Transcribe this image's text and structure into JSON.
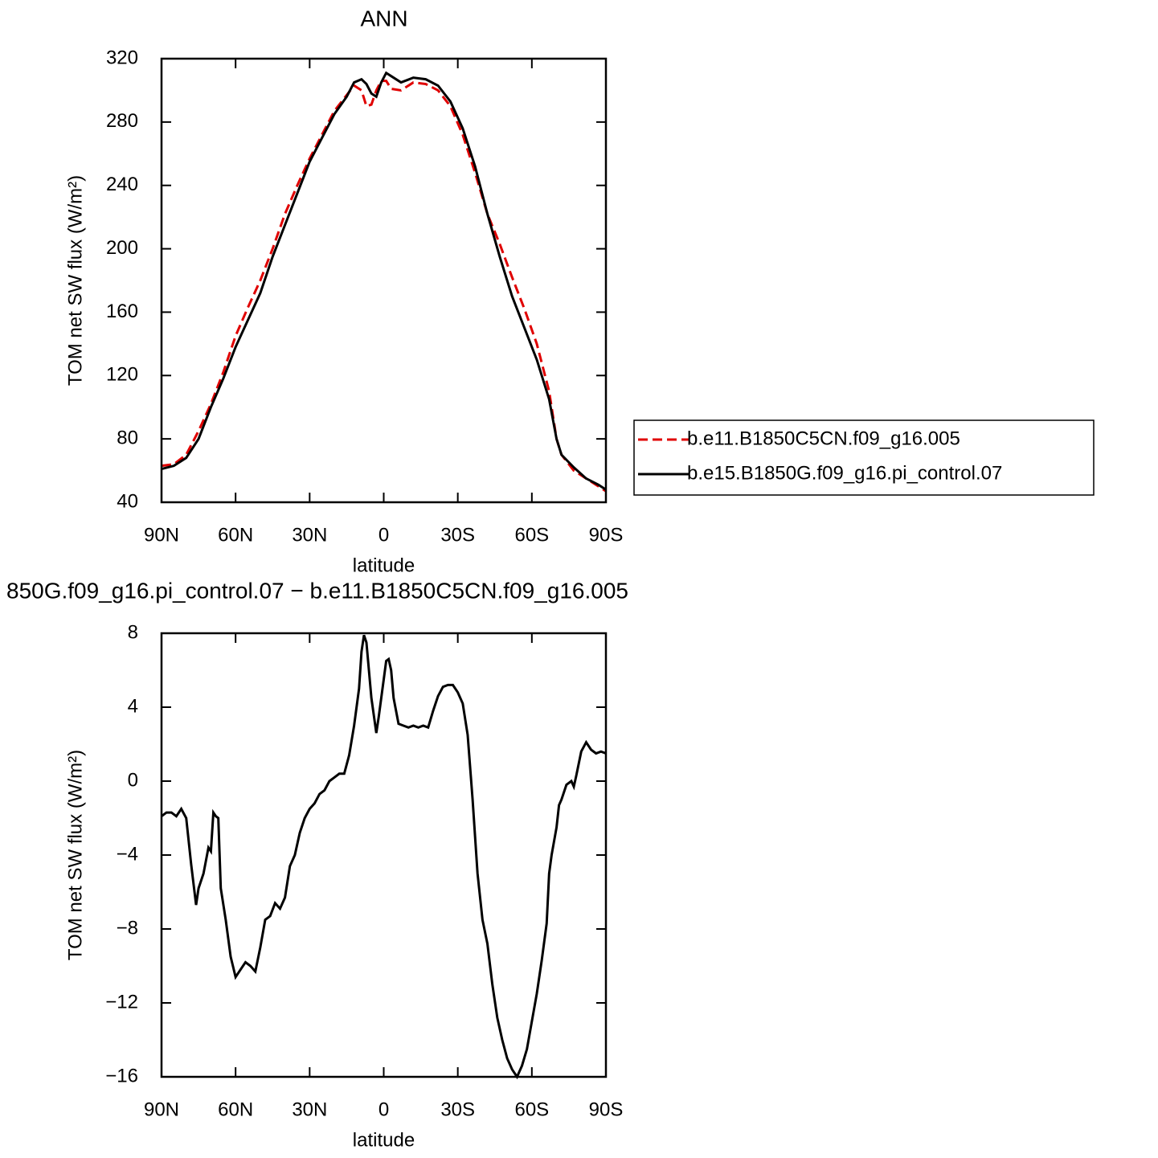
{
  "chart_data": [
    {
      "type": "line",
      "title": "ANN",
      "xlabel": "latitude",
      "ylabel": "TOM net SW flux (W/m²)",
      "xlim": [
        90,
        -90
      ],
      "ylim": [
        40,
        320
      ],
      "xticks": [
        {
          "value": 90,
          "label": "90N"
        },
        {
          "value": 60,
          "label": "60N"
        },
        {
          "value": 30,
          "label": "30N"
        },
        0,
        {
          "value": -30,
          "label": "30S"
        },
        {
          "value": -60,
          "label": "60S"
        },
        {
          "value": -90,
          "label": "90S"
        }
      ],
      "yticks": [
        40,
        80,
        120,
        160,
        200,
        240,
        280,
        320
      ],
      "legend": "right",
      "x": [
        90,
        85,
        80,
        75,
        70,
        65,
        60,
        55,
        50,
        45,
        40,
        35,
        30,
        25,
        20,
        15,
        12,
        9,
        7,
        5,
        3,
        1,
        -1,
        -3,
        -7,
        -12,
        -17,
        -22,
        -27,
        -32,
        -37,
        -42,
        -47,
        -52,
        -57,
        -62,
        -67,
        -70,
        -72,
        -77,
        -82,
        -87,
        -90
      ],
      "series": [
        {
          "name": "b.e11.B1850C5CN.f09_g16.005",
          "color": "#e00000",
          "dashed": true,
          "values": [
            63,
            64,
            70,
            85,
            102,
            122,
            145,
            163,
            180,
            200,
            222,
            240,
            257,
            272,
            287,
            297,
            303,
            300,
            290,
            291,
            300,
            306,
            306,
            301,
            300,
            305,
            304,
            300,
            290,
            272,
            248,
            222,
            203,
            182,
            162,
            140,
            110,
            80,
            70,
            60,
            55,
            50,
            47
          ]
        },
        {
          "name": "b.e15.B1850G.f09_g16.pi_control.07",
          "color": "#000000",
          "dashed": false,
          "values": [
            61,
            63,
            68,
            80,
            100,
            118,
            138,
            155,
            172,
            195,
            215,
            235,
            255,
            270,
            285,
            296,
            305,
            307,
            304,
            298,
            296,
            305,
            311,
            309,
            305,
            308,
            307,
            303,
            293,
            276,
            252,
            222,
            195,
            170,
            150,
            130,
            105,
            80,
            70,
            62,
            55,
            51,
            48
          ]
        }
      ]
    },
    {
      "type": "line",
      "title": "850G.f09_g16.pi_control.07 − b.e11.B1850C5CN.f09_g16.005",
      "xlabel": "latitude",
      "ylabel": "TOM net SW flux (W/m²)",
      "xlim": [
        90,
        -90
      ],
      "ylim": [
        -16,
        8
      ],
      "xticks": [
        {
          "value": 90,
          "label": "90N"
        },
        {
          "value": 60,
          "label": "60N"
        },
        {
          "value": 30,
          "label": "30N"
        },
        0,
        {
          "value": -30,
          "label": "30S"
        },
        {
          "value": -60,
          "label": "60S"
        },
        {
          "value": -90,
          "label": "90S"
        }
      ],
      "yticks": [
        {
          "value": -16,
          "label": "−16"
        },
        {
          "value": -12,
          "label": "−12"
        },
        {
          "value": -8,
          "label": "−8"
        },
        {
          "value": -4,
          "label": "−4"
        },
        0,
        4,
        8
      ],
      "x": [
        90,
        88,
        86,
        84,
        82,
        80,
        78,
        76,
        75,
        73,
        71,
        70,
        69,
        68,
        67,
        66,
        64,
        62,
        60,
        58,
        56,
        54,
        52,
        50,
        48,
        46,
        44,
        42,
        40,
        38,
        36,
        34,
        32,
        30,
        28,
        26,
        24,
        22,
        20,
        18,
        16,
        14,
        12,
        10,
        9,
        8,
        7,
        6,
        5,
        3,
        2,
        0,
        -1,
        -2,
        -3,
        -4,
        -6,
        -8,
        -10,
        -12,
        -14,
        -16,
        -18,
        -20,
        -22,
        -24,
        -26,
        -28,
        -30,
        -32,
        -34,
        -36,
        -38,
        -40,
        -42,
        -44,
        -46,
        -48,
        -50,
        -52,
        -54,
        -56,
        -58,
        -60,
        -62,
        -64,
        -66,
        -67,
        -68,
        -70,
        -71,
        -72,
        -74,
        -76,
        -77,
        -78,
        -80,
        -82,
        -84,
        -86,
        -88,
        -90
      ],
      "series": [
        {
          "color": "#000000",
          "dashed": false,
          "values": [
            -1.9,
            -1.7,
            -1.7,
            -1.9,
            -1.5,
            -2.0,
            -4.5,
            -6.7,
            -5.8,
            -5.0,
            -3.6,
            -3.8,
            -1.7,
            -1.9,
            -2.0,
            -5.8,
            -7.5,
            -9.5,
            -10.6,
            -10.2,
            -9.8,
            -10.0,
            -10.3,
            -9.0,
            -7.5,
            -7.3,
            -6.6,
            -6.9,
            -6.3,
            -4.6,
            -4.0,
            -2.8,
            -2.0,
            -1.5,
            -1.2,
            -0.7,
            -0.5,
            0.0,
            0.2,
            0.4,
            0.4,
            1.4,
            3.0,
            5.0,
            7.0,
            7.9,
            7.5,
            6.0,
            4.5,
            2.6,
            3.5,
            5.5,
            6.5,
            6.6,
            6.0,
            4.5,
            3.1,
            3.0,
            2.9,
            3.0,
            2.9,
            3.0,
            2.9,
            3.8,
            4.6,
            5.1,
            5.2,
            5.2,
            4.8,
            4.2,
            2.5,
            -1.0,
            -5.0,
            -7.5,
            -8.8,
            -11.0,
            -12.8,
            -14.0,
            -15.0,
            -15.6,
            -16.0,
            -15.4,
            -14.5,
            -13.0,
            -11.5,
            -9.7,
            -7.7,
            -5.0,
            -4.0,
            -2.5,
            -1.3,
            -1.0,
            -0.2,
            0.0,
            -0.3,
            0.3,
            1.6,
            2.1,
            1.7,
            1.5,
            1.6,
            1.5
          ]
        }
      ]
    }
  ]
}
